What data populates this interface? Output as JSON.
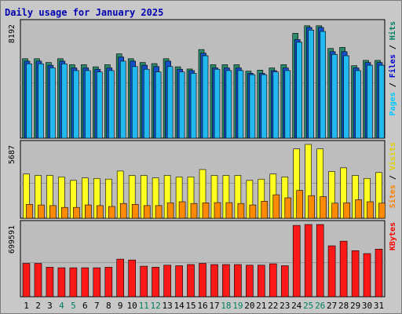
{
  "chart_data": {
    "type": "bar",
    "title": "Daily usage for January 2025",
    "days": [
      "1",
      "2",
      "3",
      "4",
      "5",
      "6",
      "7",
      "8",
      "9",
      "10",
      "11",
      "12",
      "13",
      "14",
      "15",
      "16",
      "17",
      "18",
      "19",
      "20",
      "21",
      "22",
      "23",
      "24",
      "25",
      "26",
      "27",
      "28",
      "29",
      "30",
      "31"
    ],
    "weekend_days": [
      "4",
      "5",
      "11",
      "12",
      "18",
      "19",
      "25",
      "26"
    ],
    "panels": [
      {
        "id": "hits-files-pages",
        "ymax_label": "8192",
        "ymax": 8192,
        "right_label_parts": [
          {
            "text": "Pages",
            "color": "#00c8ff"
          },
          {
            "text": " / ",
            "color": "#000000"
          },
          {
            "text": "Files",
            "color": "#0000d0"
          },
          {
            "text": " / ",
            "color": "#000000"
          },
          {
            "text": "Hits",
            "color": "#008060"
          }
        ],
        "series": [
          {
            "name": "Hits",
            "color": "#2a8a6a",
            "values": [
              5880,
              5880,
              5600,
              5880,
              5440,
              5440,
              5280,
              5440,
              6240,
              5880,
              5600,
              5520,
              5880,
              5280,
              5120,
              6560,
              5440,
              5440,
              5440,
              4960,
              5040,
              5200,
              5440,
              7760,
              8320,
              8320,
              6640,
              6720,
              5360,
              5760,
              5760
            ]
          },
          {
            "name": "Files",
            "color": "#1050c8",
            "values": [
              5700,
              5700,
              5400,
              5700,
              5200,
              5200,
              5100,
              5200,
              6000,
              5700,
              5400,
              5300,
              5700,
              5100,
              5000,
              6300,
              5200,
              5200,
              5200,
              4800,
              4800,
              5000,
              5200,
              7300,
              8200,
              8200,
              6400,
              6400,
              5200,
              5600,
              5600
            ]
          },
          {
            "name": "Pages",
            "color": "#22b8f0",
            "values": [
              5500,
              5500,
              5200,
              5500,
              5000,
              5000,
              4900,
              5000,
              5700,
              5300,
              5100,
              4900,
              5300,
              4900,
              4800,
              6100,
              5100,
              5000,
              5000,
              4700,
              4700,
              4900,
              5000,
              7100,
              8000,
              7900,
              6200,
              6100,
              5000,
              5400,
              5400
            ]
          }
        ]
      },
      {
        "id": "visits-sites",
        "ymax_label": "5687",
        "ymax": 5687,
        "right_label_parts": [
          {
            "text": "Sites",
            "color": "#ff8000"
          },
          {
            "text": " / ",
            "color": "#000000"
          },
          {
            "text": "Visits",
            "color": "#e0d000"
          }
        ],
        "series": [
          {
            "name": "Visits",
            "color": "#ffff20",
            "values": [
              3600,
              3480,
              3480,
              3360,
              3080,
              3280,
              3240,
              3180,
              3840,
              3480,
              3480,
              3280,
              3480,
              3360,
              3360,
              3960,
              3480,
              3480,
              3480,
              3080,
              3180,
              3600,
              3360,
              5640,
              6100,
              5640,
              3800,
              4100,
              3480,
              3240,
              3720
            ]
          },
          {
            "name": "Sites",
            "color": "#ff8a00",
            "values": [
              1130,
              1080,
              1030,
              880,
              880,
              1080,
              1030,
              960,
              1200,
              1130,
              1030,
              1030,
              1250,
              1340,
              1200,
              1250,
              1270,
              1270,
              1200,
              1080,
              1380,
              1910,
              1660,
              2260,
              1840,
              1760,
              1230,
              1250,
              1510,
              1340,
              1230
            ]
          }
        ]
      },
      {
        "id": "kbytes",
        "ymax_label": "699591",
        "ymax": 699591,
        "right_label_parts": [
          {
            "text": "KBytes",
            "color": "#ff0000"
          }
        ],
        "series": [
          {
            "name": "KBytes",
            "color": "#ff1818",
            "values": [
              342000,
              342000,
              302000,
              297000,
              297000,
              297000,
              297000,
              302000,
              385000,
              376000,
              313000,
              302000,
              323000,
              318000,
              330000,
              342000,
              330000,
              330000,
              330000,
              323000,
              323000,
              338000,
              318000,
              731000,
              780000,
              760000,
              522000,
              569000,
              472000,
              442000,
              488000
            ]
          }
        ]
      }
    ]
  }
}
